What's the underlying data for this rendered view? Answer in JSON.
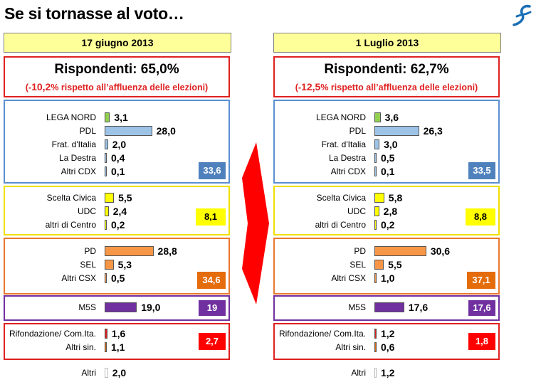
{
  "title": "Se si tornasse al voto…",
  "logo_icon": "stylized-logo-icon",
  "colors": {
    "cdx_border": "#5b8fd1",
    "cdx_total_bg": "#4f81bd",
    "centro_border": "#f0e000",
    "centro_total_bg": "#ffff00",
    "csx_border": "#e87830",
    "csx_total_bg": "#e46c0a",
    "m5s_border": "#7030a0",
    "m5s_total_bg": "#7030a0",
    "sin_border": "#e02020",
    "sin_total_bg": "#ff0000",
    "arrow": "#ff0000"
  },
  "panels": [
    {
      "date": "17 giugno 2013",
      "respondents": "Rispondenti: 65,0%",
      "delta_prefix": "(-",
      "delta_value": "10,2",
      "delta_suffix": "% rispetto all’affluenza delle elezioni)",
      "groups": {
        "cdx": {
          "total": "33,6",
          "rows": [
            {
              "label": "LEGA NORD",
              "value": "3,1"
            },
            {
              "label": "PDL",
              "value": "28,0"
            },
            {
              "label": "Frat. d'Italia",
              "value": "2,0"
            },
            {
              "label": "La Destra",
              "value": "0,4"
            },
            {
              "label": "Altri CDX",
              "value": "0,1"
            }
          ]
        },
        "centro": {
          "total": "8,1",
          "rows": [
            {
              "label": "Scelta Civica",
              "value": "5,5"
            },
            {
              "label": "UDC",
              "value": "2,4"
            },
            {
              "label": "altri di Centro",
              "value": "0,2"
            }
          ]
        },
        "csx": {
          "total": "34,6",
          "rows": [
            {
              "label": "PD",
              "value": "28,8"
            },
            {
              "label": "SEL",
              "value": "5,3"
            },
            {
              "label": "Altri CSX",
              "value": "0,5"
            }
          ]
        },
        "m5s": {
          "total": "19",
          "rows": [
            {
              "label": "M5S",
              "value": "19,0"
            }
          ]
        },
        "sin": {
          "total": "2,7",
          "rows": [
            {
              "label": "Rifondazione/ Com.Ita.",
              "value": "1,6"
            },
            {
              "label": "Altri sin.",
              "value": "1,1"
            }
          ]
        },
        "altri": {
          "rows": [
            {
              "label": "Altri",
              "value": "2,0"
            }
          ]
        }
      }
    },
    {
      "date": "1 Luglio 2013",
      "respondents": "Rispondenti: 62,7%",
      "delta_prefix": "(-",
      "delta_value": "12,5",
      "delta_suffix": "% rispetto all’affluenza delle elezioni)",
      "groups": {
        "cdx": {
          "total": "33,5",
          "rows": [
            {
              "label": "LEGA NORD",
              "value": "3,6"
            },
            {
              "label": "PDL",
              "value": "26,3"
            },
            {
              "label": "Frat. d'Italia",
              "value": "3,0"
            },
            {
              "label": "La Destra",
              "value": "0,5"
            },
            {
              "label": "Altri CDX",
              "value": "0,1"
            }
          ]
        },
        "centro": {
          "total": "8,8",
          "rows": [
            {
              "label": "Scelta Civica",
              "value": "5,8"
            },
            {
              "label": "UDC",
              "value": "2,8"
            },
            {
              "label": "altri di Centro",
              "value": "0,2"
            }
          ]
        },
        "csx": {
          "total": "37,1",
          "rows": [
            {
              "label": "PD",
              "value": "30,6"
            },
            {
              "label": "SEL",
              "value": "5,5"
            },
            {
              "label": "Altri CSX",
              "value": "1,0"
            }
          ]
        },
        "m5s": {
          "total": "17,6",
          "rows": [
            {
              "label": "M5S",
              "value": "17,6"
            }
          ]
        },
        "sin": {
          "total": "1,8",
          "rows": [
            {
              "label": "Rifondazione/ Com.Ita.",
              "value": "1,2"
            },
            {
              "label": "Altri sin.",
              "value": "0,6"
            }
          ]
        },
        "altri": {
          "rows": [
            {
              "label": "Altri",
              "value": "1,2"
            }
          ]
        }
      }
    }
  ],
  "chart_data": [
    {
      "type": "bar",
      "title": "17 giugno 2013",
      "categories": [
        "LEGA NORD",
        "PDL",
        "Frat. d'Italia",
        "La Destra",
        "Altri CDX",
        "Scelta Civica",
        "UDC",
        "altri di Centro",
        "PD",
        "SEL",
        "Altri CSX",
        "M5S",
        "Rifondazione/ Com.Ita.",
        "Altri sin.",
        "Altri"
      ],
      "values": [
        3.1,
        28.0,
        2.0,
        0.4,
        0.1,
        5.5,
        2.4,
        0.2,
        28.8,
        5.3,
        0.5,
        19.0,
        1.6,
        1.1,
        2.0
      ],
      "group_totals": {
        "cdx": 33.6,
        "centro": 8.1,
        "csx": 34.6,
        "m5s": 19,
        "sin": 2.7
      }
    },
    {
      "type": "bar",
      "title": "1 Luglio 2013",
      "categories": [
        "LEGA NORD",
        "PDL",
        "Frat. d'Italia",
        "La Destra",
        "Altri CDX",
        "Scelta Civica",
        "UDC",
        "altri di Centro",
        "PD",
        "SEL",
        "Altri CSX",
        "M5S",
        "Rifondazione/ Com.Ita.",
        "Altri sin.",
        "Altri"
      ],
      "values": [
        3.6,
        26.3,
        3.0,
        0.5,
        0.1,
        5.8,
        2.8,
        0.2,
        30.6,
        5.5,
        1.0,
        17.6,
        1.2,
        0.6,
        1.2
      ],
      "group_totals": {
        "cdx": 33.5,
        "centro": 8.8,
        "csx": 37.1,
        "m5s": 17.6,
        "sin": 1.8
      }
    }
  ]
}
